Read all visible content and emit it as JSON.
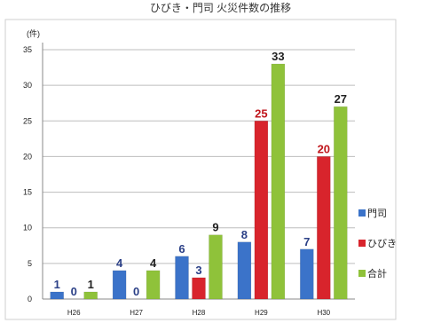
{
  "chart_data": {
    "type": "bar",
    "title": "ひびき・門司 火災件数の推移",
    "y_unit_label": "(件)",
    "categories": [
      "H26",
      "H27",
      "H28",
      "H29",
      "H30"
    ],
    "series": [
      {
        "name": "門司",
        "color": "#3b73c9",
        "values": [
          1,
          4,
          6,
          8,
          7
        ]
      },
      {
        "name": "ひびき",
        "color": "#d8242c",
        "values": [
          0,
          0,
          3,
          25,
          20
        ]
      },
      {
        "name": "合計",
        "color": "#8fc23a",
        "values": [
          1,
          4,
          9,
          33,
          27
        ]
      }
    ],
    "y_ticks": [
      0,
      5,
      10,
      15,
      20,
      25,
      30,
      35
    ],
    "ylim": [
      0,
      35
    ],
    "grid": true,
    "legend_position": "right",
    "data_label_colors": [
      "#2a3f86",
      "#2a3f86",
      "#222222"
    ],
    "data_label_colors_high": [
      "#222222",
      "#c0161c",
      "#222222"
    ]
  }
}
